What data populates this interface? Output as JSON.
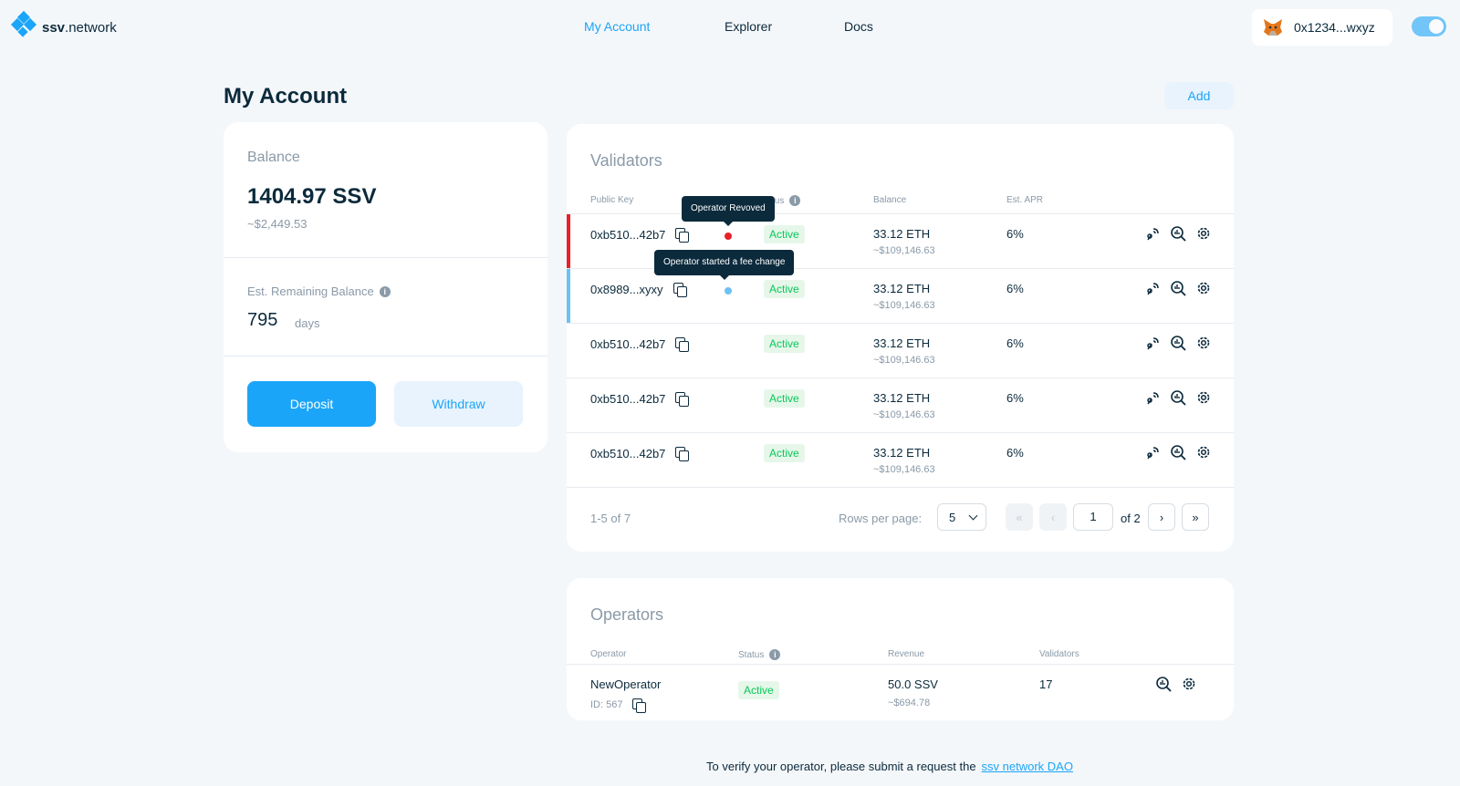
{
  "header": {
    "logo_bold": "ssv",
    "logo_rest": ".network",
    "nav": [
      "My Account",
      "Explorer",
      "Docs"
    ],
    "wallet_address": "0x1234...wxyz"
  },
  "page": {
    "title": "My Account",
    "add_label": "Add"
  },
  "balance": {
    "label": "Balance",
    "amount": "1404.97 SSV",
    "fiat": "~$2,449.53",
    "remaining_label": "Est. Remaining Balance",
    "remaining_value": "795",
    "remaining_unit": "days",
    "deposit_label": "Deposit",
    "withdraw_label": "Withdraw"
  },
  "validators": {
    "title": "Validators",
    "columns": [
      "Public Key",
      "tus",
      "Balance",
      "Est. APR"
    ],
    "rows": [
      {
        "key": "0xb510...42b7",
        "status": "Active",
        "eth": "33.12 ETH",
        "usd": "~$109,146.63",
        "apr": "6%",
        "flag": "red"
      },
      {
        "key": "0x8989...xyxy",
        "status": "Active",
        "eth": "33.12 ETH",
        "usd": "~$109,146.63",
        "apr": "6%",
        "flag": "blue"
      },
      {
        "key": "0xb510...42b7",
        "status": "Active",
        "eth": "33.12 ETH",
        "usd": "~$109,146.63",
        "apr": "6%",
        "flag": ""
      },
      {
        "key": "0xb510...42b7",
        "status": "Active",
        "eth": "33.12 ETH",
        "usd": "~$109,146.63",
        "apr": "6%",
        "flag": ""
      },
      {
        "key": "0xb510...42b7",
        "status": "Active",
        "eth": "33.12 ETH",
        "usd": "~$109,146.63",
        "apr": "6%",
        "flag": ""
      }
    ],
    "tooltip_revoked": "Operator Revoved",
    "tooltip_fee": "Operator started a fee change",
    "range": "1-5 of 7",
    "rows_per_page_label": "Rows per page:",
    "rows_per_page": "5",
    "page": "1",
    "of_pages": "of 2"
  },
  "operators": {
    "title": "Operators",
    "columns": [
      "Operator",
      "Status",
      "Revenue",
      "Validators"
    ],
    "row": {
      "name": "NewOperator",
      "id": "ID: 567",
      "status": "Active",
      "revenue": "50.0 SSV",
      "revenue_usd": "~$694.78",
      "validators": "17"
    }
  },
  "footer": {
    "text": "To verify your operator, please submit a request the",
    "link": "ssv network DAO"
  },
  "colors": {
    "accent": "#1ba5f8",
    "active_bg": "#e6f7ea",
    "active_fg": "#08c858",
    "revoked": "#e8202a",
    "fee_change": "#6cc1f5"
  }
}
